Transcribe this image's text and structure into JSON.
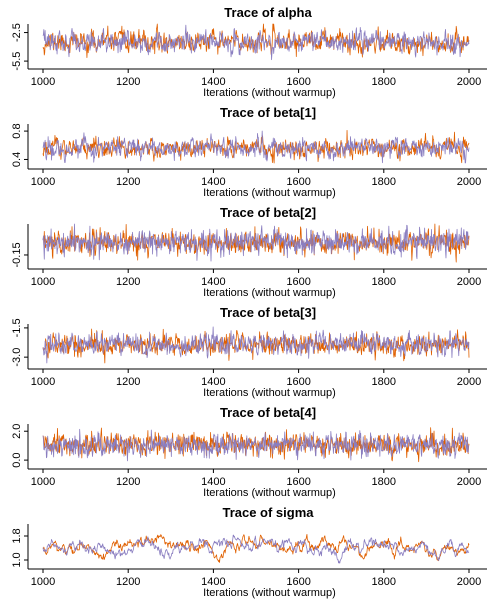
{
  "chart_data": [
    {
      "type": "line",
      "title": "Trace of  alpha",
      "xlabel": "Iterations (without warmup)",
      "ylabel": "",
      "xlim": [
        1000,
        2000
      ],
      "xticks": [
        1000,
        1200,
        1400,
        1600,
        1800,
        2000
      ],
      "ylim": [
        -5.7,
        -1.6
      ],
      "yticks": [
        -5.5,
        -2.5
      ],
      "series": [
        {
          "color": "#e06000",
          "mean": -3.5,
          "sd": 0.55,
          "ar": 0.5,
          "seed": 11
        },
        {
          "color": "#8a7ec0",
          "mean": -3.5,
          "sd": 0.55,
          "ar": 0.5,
          "seed": 12
        }
      ]
    },
    {
      "type": "line",
      "title": "Trace of  beta[1]",
      "xlabel": "Iterations (without warmup)",
      "ylabel": "",
      "xlim": [
        1000,
        2000
      ],
      "xticks": [
        1000,
        1200,
        1400,
        1600,
        1800,
        2000
      ],
      "ylim": [
        0.35,
        0.9
      ],
      "yticks": [
        0.4,
        0.8
      ],
      "series": [
        {
          "color": "#e06000",
          "mean": 0.56,
          "sd": 0.07,
          "ar": 0.5,
          "seed": 21
        },
        {
          "color": "#8a7ec0",
          "mean": 0.56,
          "sd": 0.07,
          "ar": 0.5,
          "seed": 22
        }
      ]
    },
    {
      "type": "line",
      "title": "Trace of  beta[2]",
      "xlabel": "Iterations (without warmup)",
      "ylabel": "",
      "xlim": [
        1000,
        2000
      ],
      "xticks": [
        1000,
        1200,
        1400,
        1600,
        1800,
        2000
      ],
      "ylim": [
        -0.22,
        0.12
      ],
      "yticks": [
        -0.15
      ],
      "series": [
        {
          "color": "#e06000",
          "mean": -0.04,
          "sd": 0.05,
          "ar": 0.2,
          "seed": 31
        },
        {
          "color": "#8a7ec0",
          "mean": -0.04,
          "sd": 0.05,
          "ar": 0.2,
          "seed": 32
        }
      ]
    },
    {
      "type": "line",
      "title": "Trace of  beta[3]",
      "xlabel": "Iterations (without warmup)",
      "ylabel": "",
      "xlim": [
        1000,
        2000
      ],
      "xticks": [
        1000,
        1200,
        1400,
        1600,
        1800,
        2000
      ],
      "ylim": [
        -3.3,
        -1.3
      ],
      "yticks": [
        -3.0,
        -1.5
      ],
      "series": [
        {
          "color": "#e06000",
          "mean": -2.35,
          "sd": 0.28,
          "ar": 0.4,
          "seed": 41
        },
        {
          "color": "#8a7ec0",
          "mean": -2.35,
          "sd": 0.28,
          "ar": 0.4,
          "seed": 42
        }
      ]
    },
    {
      "type": "line",
      "title": "Trace of  beta[4]",
      "xlabel": "Iterations (without warmup)",
      "ylabel": "",
      "xlim": [
        1000,
        2000
      ],
      "xticks": [
        1000,
        1200,
        1400,
        1600,
        1800,
        2000
      ],
      "ylim": [
        -0.2,
        2.5
      ],
      "yticks": [
        0.0,
        2.0
      ],
      "series": [
        {
          "color": "#e06000",
          "mean": 1.05,
          "sd": 0.38,
          "ar": 0.25,
          "seed": 51
        },
        {
          "color": "#8a7ec0",
          "mean": 1.05,
          "sd": 0.38,
          "ar": 0.25,
          "seed": 52
        }
      ]
    },
    {
      "type": "line",
      "title": "Trace of  sigma",
      "xlabel": "Iterations (without warmup)",
      "ylabel": "",
      "xlim": [
        1000,
        2000
      ],
      "xticks": [
        1000,
        1200,
        1400,
        1600,
        1800,
        2000
      ],
      "ylim": [
        0.9,
        2.2
      ],
      "yticks": [
        1.0,
        1.8
      ],
      "series": [
        {
          "color": "#e06000",
          "mean": 1.4,
          "sd": 0.17,
          "ar": 0.93,
          "seed": 61
        },
        {
          "color": "#8a7ec0",
          "mean": 1.4,
          "sd": 0.17,
          "ar": 0.93,
          "seed": 62
        }
      ]
    }
  ]
}
